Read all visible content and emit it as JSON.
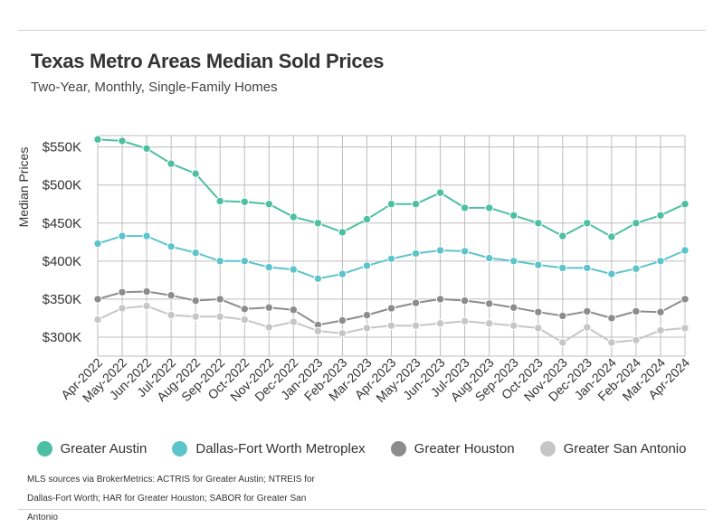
{
  "header": {
    "title": "Texas Metro Areas Median Sold Prices",
    "subtitle": "Two-Year, Monthly, Single-Family Homes"
  },
  "source_note": "MLS sources via BrokerMetrics: ACTRIS for Greater Austin; NTREIS for Dallas-Fort Worth; HAR for Greater Houston; SABOR for Greater San Antonio",
  "chart_data": {
    "type": "line",
    "title": "Texas Metro Areas Median Sold Prices",
    "subtitle": "Two-Year, Monthly, Single-Family Homes",
    "xlabel": "",
    "ylabel": "Median Prices",
    "ylim": [
      275000,
      565000
    ],
    "yticks": [
      300000,
      350000,
      400000,
      450000,
      500000,
      550000
    ],
    "ytick_labels": [
      "$300K",
      "$350K",
      "$400K",
      "$450K",
      "$500K",
      "$550K"
    ],
    "grid": true,
    "legend_position": "bottom",
    "categories": [
      "Apr-2022",
      "May-2022",
      "Jun-2022",
      "Jul-2022",
      "Aug-2022",
      "Sep-2022",
      "Oct-2022",
      "Nov-2022",
      "Dec-2022",
      "Jan-2023",
      "Feb-2023",
      "Mar-2023",
      "Apr-2023",
      "May-2023",
      "Jun-2023",
      "Jul-2023",
      "Aug-2023",
      "Sep-2023",
      "Oct-2023",
      "Nov-2023",
      "Dec-2023",
      "Jan-2024",
      "Feb-2024",
      "Mar-2024",
      "Apr-2024"
    ],
    "series": [
      {
        "name": "Greater Austin",
        "color": "#4dbfa3",
        "values": [
          560000,
          558000,
          548000,
          528000,
          515000,
          479000,
          478000,
          475000,
          458000,
          450000,
          438000,
          455000,
          475000,
          475000,
          490000,
          470000,
          470000,
          460000,
          450000,
          433000,
          450000,
          432000,
          450000,
          460000,
          475000
        ]
      },
      {
        "name": "Dallas-Fort Worth Metroplex",
        "color": "#5ec4cc",
        "values": [
          423000,
          433000,
          433000,
          419000,
          411000,
          400000,
          400000,
          392000,
          389000,
          377000,
          383000,
          394000,
          403000,
          410000,
          414000,
          413000,
          404000,
          400000,
          395000,
          391000,
          391000,
          383000,
          390000,
          400000,
          414000
        ]
      },
      {
        "name": "Greater Houston",
        "color": "#8c8c8c",
        "values": [
          350000,
          359000,
          360000,
          355000,
          348000,
          350000,
          337000,
          339000,
          336000,
          316000,
          322000,
          329000,
          338000,
          345000,
          350000,
          348000,
          344000,
          339000,
          333000,
          328000,
          334000,
          325000,
          334000,
          333000,
          350000
        ]
      },
      {
        "name": "Greater San Antonio",
        "color": "#c6c6c6",
        "values": [
          323000,
          338000,
          341000,
          329000,
          327000,
          327000,
          323000,
          313000,
          320000,
          308000,
          305000,
          312000,
          315000,
          315000,
          318000,
          321000,
          318000,
          315000,
          312000,
          293000,
          313000,
          293000,
          296000,
          309000,
          312000
        ]
      }
    ]
  }
}
